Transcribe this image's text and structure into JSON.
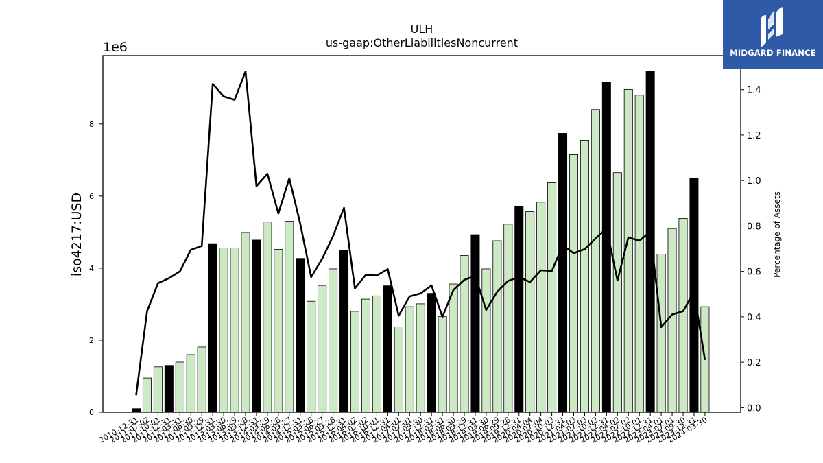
{
  "brand": {
    "name": "MIDGARD FINANCE",
    "icon": "midgard-logo-icon",
    "color": "#2f5aa8"
  },
  "chart_data": {
    "type": "bar+line",
    "title": "ULH",
    "subtitle": "us-gaap:OtherLiabilitiesNoncurrent",
    "ylabel": "iso4217:USD",
    "y_offset_label": "1e6",
    "y2label": "Percentage of Assets",
    "ylim": [
      0,
      9900000
    ],
    "y2lim": [
      -0.02,
      1.55
    ],
    "yticks": [
      "0",
      "2",
      "4",
      "6",
      "8"
    ],
    "y2ticks": [
      "0.0",
      "0.2",
      "0.4",
      "0.6",
      "0.8",
      "1.0",
      "1.2",
      "1.4"
    ],
    "colors": {
      "bar_fy": "#000000",
      "bar_q": "#cce8c4",
      "bar_edge": "#000000",
      "line": "#000000"
    },
    "categories": [
      "2010-12-31",
      "2011-07-02",
      "2011-10-01",
      "2011-12-31",
      "2012-03-31",
      "2012-06-30",
      "2012-09-29",
      "2012-12-31",
      "2013-03-30",
      "2013-06-29",
      "2013-09-28",
      "2013-12-31",
      "2014-03-29",
      "2014-06-28",
      "2014-09-27",
      "2014-12-31",
      "2015-03-28",
      "2015-06-27",
      "2015-09-26",
      "2015-12-31",
      "2016-04-02",
      "2016-07-02",
      "2016-10-01",
      "2016-12-31",
      "2017-04-01",
      "2017-07-01",
      "2017-09-30",
      "2017-12-31",
      "2018-03-31",
      "2018-06-30",
      "2018-09-29",
      "2018-12-31",
      "2019-03-30",
      "2019-06-29",
      "2019-09-28",
      "2019-12-31",
      "2020-04-04",
      "2020-07-04",
      "2020-10-03",
      "2020-12-31",
      "2021-04-03",
      "2021-07-03",
      "2021-10-02",
      "2021-12-31",
      "2022-04-02",
      "2022-07-02",
      "2022-10-01",
      "2022-12-31",
      "2023-04-01",
      "2023-07-01",
      "2023-09-30",
      "2023-12-31",
      "2024-03-30"
    ],
    "series": [
      {
        "kind": "bar",
        "values": [
          100000,
          950000,
          1260000,
          1300000,
          1390000,
          1600000,
          1810000,
          4680000,
          4560000,
          4560000,
          4990000,
          4780000,
          5280000,
          4520000,
          5300000,
          4270000,
          3080000,
          3520000,
          3980000,
          4500000,
          2800000,
          3140000,
          3230000,
          3510000,
          2370000,
          2930000,
          3010000,
          3300000,
          2660000,
          3560000,
          4350000,
          4930000,
          3980000,
          4760000,
          5220000,
          5720000,
          5570000,
          5830000,
          6370000,
          7740000,
          7150000,
          7550000,
          8400000,
          9160000,
          6650000,
          8960000,
          8800000,
          9460000,
          4390000,
          5100000,
          5380000,
          6500000,
          2930000
        ],
        "fiscal_year_end": [
          true,
          false,
          false,
          true,
          false,
          false,
          false,
          true,
          false,
          false,
          false,
          true,
          false,
          false,
          false,
          true,
          false,
          false,
          false,
          true,
          false,
          false,
          false,
          true,
          false,
          false,
          false,
          true,
          false,
          false,
          false,
          true,
          false,
          false,
          false,
          true,
          false,
          false,
          false,
          true,
          false,
          false,
          false,
          true,
          false,
          false,
          false,
          true,
          false,
          false,
          false,
          true,
          false
        ]
      },
      {
        "kind": "line",
        "axis": "right",
        "values": [
          0.055,
          0.425,
          0.548,
          0.57,
          0.6,
          0.695,
          0.712,
          1.425,
          1.37,
          1.355,
          1.48,
          0.975,
          1.03,
          0.855,
          1.01,
          0.81,
          0.575,
          0.655,
          0.755,
          0.88,
          0.525,
          0.585,
          0.582,
          0.61,
          0.405,
          0.49,
          0.503,
          0.538,
          0.4,
          0.518,
          0.563,
          0.58,
          0.43,
          0.51,
          0.558,
          0.575,
          0.553,
          0.605,
          0.602,
          0.715,
          0.68,
          0.698,
          0.745,
          0.79,
          0.56,
          0.75,
          0.735,
          0.775,
          0.355,
          0.41,
          0.425,
          0.51,
          0.21
        ]
      }
    ]
  }
}
